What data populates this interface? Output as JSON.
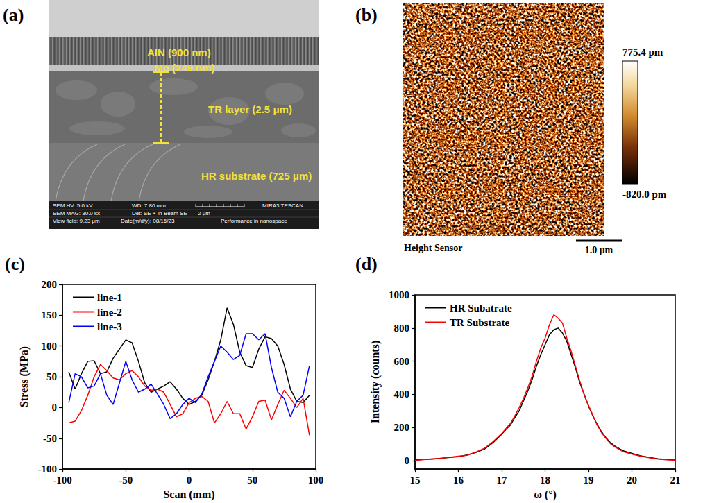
{
  "images": [
    {
      "letter": "(a)",
      "layers": [
        "AlN (900 nm)",
        "Mo (249 nm)",
        "TR layer (2.5 μm)",
        "HR substrate (725 μm)"
      ],
      "info_bar": [
        "SEM HV: 5.0 kV",
        "WD: 7.80 mm",
        "MIRA3 TESCAN",
        "SEM MAG: 30.0 kx",
        "Det: SE + In-Beam SE",
        "2 μm",
        "View field: 9.23 μm",
        "Date(m/d/y): 08/16/23",
        "Performance in nanospace"
      ]
    },
    {
      "letter": "(b)",
      "caption": "Height Sensor",
      "scale_bar": "1.0 μm",
      "colorbar": {
        "range": [
          -820.0,
          775.4
        ],
        "ticks": [
          {
            "value": 775.4,
            "label": "775.4 pm"
          },
          {
            "value": -820.0,
            "label": "-820.0 pm"
          }
        ]
      }
    }
  ],
  "chart_data": [
    {
      "type": "line",
      "title": "(c)",
      "x_label": "Scan (mm)",
      "y_label": "Stress (MPa)",
      "x": [
        -95,
        -90,
        -85,
        -80,
        -75,
        -70,
        -65,
        -60,
        -55,
        -50,
        -45,
        -40,
        -35,
        -30,
        -25,
        -20,
        -15,
        -10,
        -5,
        0,
        5,
        10,
        15,
        20,
        25,
        30,
        35,
        40,
        45,
        50,
        55,
        60,
        65,
        70,
        75,
        80,
        85,
        90,
        95
      ],
      "xlim": [
        -100,
        100
      ],
      "xticks": [
        -100,
        -50,
        0,
        50,
        100
      ],
      "ylim": [
        -100,
        200
      ],
      "yticks": [
        -100,
        -50,
        0,
        50,
        100,
        150,
        200
      ],
      "grid": false,
      "legend": "upper left",
      "series": [
        {
          "name": "line-1",
          "color": "#000000",
          "values": [
            58,
            30,
            55,
            75,
            76,
            55,
            58,
            80,
            95,
            110,
            105,
            75,
            40,
            25,
            30,
            35,
            42,
            30,
            15,
            5,
            10,
            20,
            45,
            75,
            110,
            162,
            135,
            90,
            68,
            65,
            95,
            115,
            112,
            100,
            70,
            30,
            10,
            8,
            20
          ]
        },
        {
          "name": "line-2",
          "color": "#ff0000",
          "values": [
            -25,
            -22,
            -5,
            20,
            50,
            70,
            60,
            48,
            45,
            55,
            60,
            50,
            35,
            28,
            30,
            25,
            5,
            -15,
            -10,
            8,
            15,
            18,
            10,
            -25,
            -10,
            10,
            -10,
            -10,
            -35,
            -15,
            10,
            12,
            -20,
            5,
            28,
            15,
            0,
            15,
            -45
          ]
        },
        {
          "name": "line-3",
          "color": "#0000ff",
          "values": [
            8,
            55,
            50,
            32,
            35,
            55,
            20,
            5,
            40,
            75,
            45,
            25,
            30,
            38,
            22,
            5,
            -18,
            -10,
            5,
            15,
            8,
            22,
            50,
            75,
            100,
            90,
            78,
            85,
            120,
            120,
            110,
            120,
            65,
            25,
            15,
            -15,
            10,
            20,
            68
          ]
        }
      ]
    },
    {
      "type": "line",
      "title": "(d)",
      "x_label": "ω (°)",
      "y_label": "Intensity (counts)",
      "x": [
        15.0,
        15.2,
        15.4,
        15.6,
        15.8,
        16.0,
        16.2,
        16.4,
        16.6,
        16.8,
        17.0,
        17.1,
        17.2,
        17.3,
        17.4,
        17.5,
        17.6,
        17.7,
        17.8,
        17.9,
        18.0,
        18.1,
        18.2,
        18.3,
        18.4,
        18.5,
        18.6,
        18.7,
        18.8,
        18.9,
        19.0,
        19.1,
        19.2,
        19.3,
        19.4,
        19.5,
        19.6,
        19.8,
        20.0,
        20.2,
        20.4,
        20.6,
        20.8,
        21.0
      ],
      "xlim": [
        15,
        21
      ],
      "xticks": [
        15,
        16,
        17,
        18,
        19,
        20,
        21
      ],
      "ylim": [
        -50,
        1000
      ],
      "yticks": [
        0,
        200,
        400,
        600,
        800,
        1000
      ],
      "grid": false,
      "legend": "upper left",
      "series": [
        {
          "name": "HR Subatrate",
          "color": "#000000",
          "values": [
            5,
            8,
            10,
            15,
            20,
            25,
            35,
            50,
            70,
            110,
            160,
            190,
            215,
            260,
            300,
            360,
            420,
            490,
            570,
            640,
            700,
            760,
            790,
            800,
            770,
            720,
            640,
            560,
            470,
            400,
            330,
            270,
            220,
            175,
            140,
            110,
            90,
            60,
            45,
            30,
            20,
            12,
            8,
            5
          ]
        },
        {
          "name": "TR Substrate",
          "color": "#ff0000",
          "values": [
            3,
            7,
            12,
            14,
            22,
            28,
            33,
            52,
            75,
            115,
            165,
            195,
            225,
            270,
            320,
            375,
            440,
            510,
            600,
            680,
            740,
            820,
            880,
            860,
            830,
            740,
            660,
            570,
            480,
            400,
            335,
            275,
            215,
            170,
            135,
            105,
            85,
            55,
            40,
            28,
            18,
            10,
            6,
            4
          ]
        }
      ]
    }
  ]
}
